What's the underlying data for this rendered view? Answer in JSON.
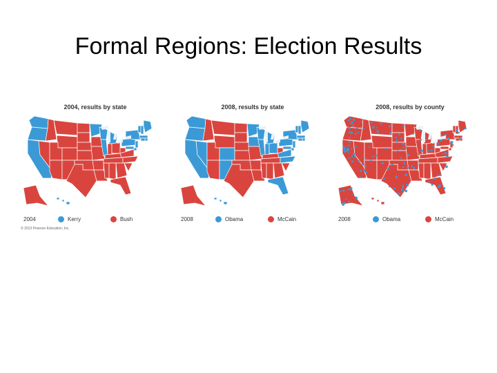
{
  "slide": {
    "title": "Formal Regions: Election Results"
  },
  "colors": {
    "blue": "#3b9ad6",
    "red": "#d9453e",
    "lake": "#e8f3fa"
  },
  "maps": [
    {
      "title": "2004, results by state",
      "legend_year": "2004",
      "candidate_blue": "Kerry",
      "candidate_red": "Bush",
      "winners_blue": [
        "WA",
        "OR",
        "CA",
        "MN",
        "WI",
        "MI",
        "IL",
        "PA",
        "NY",
        "VT",
        "NH",
        "ME",
        "MA",
        "RI",
        "CT",
        "NJ",
        "DE",
        "MD",
        "HI"
      ],
      "county_mix": false
    },
    {
      "title": "2008, results by state",
      "legend_year": "2008",
      "candidate_blue": "Obama",
      "candidate_red": "McCain",
      "winners_blue": [
        "WA",
        "OR",
        "CA",
        "NV",
        "CO",
        "NM",
        "MN",
        "IA",
        "WI",
        "MI",
        "IL",
        "IN",
        "OH",
        "PA",
        "NY",
        "VT",
        "NH",
        "ME",
        "MA",
        "RI",
        "CT",
        "NJ",
        "DE",
        "MD",
        "VA",
        "NC",
        "FL",
        "HI"
      ],
      "county_mix": false
    },
    {
      "title": "2008, results by county",
      "legend_year": "2008",
      "candidate_blue": "Obama",
      "candidate_red": "McCain",
      "winners_blue": [],
      "county_mix": true
    }
  ],
  "credit": "© 2013 Pearson Education, Inc."
}
